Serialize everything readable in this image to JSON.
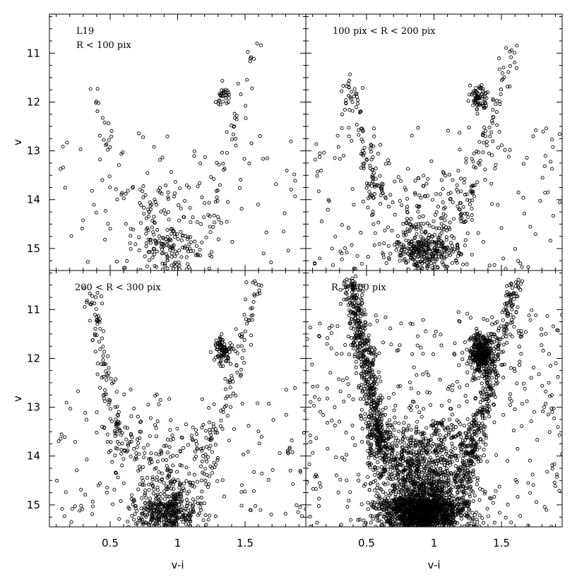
{
  "chart_data": {
    "type": "scatter",
    "layout": "2x2 shared axes",
    "xlabel": "v-i",
    "ylabel": "v",
    "xlim": [
      0.05,
      1.95
    ],
    "ylim": [
      15.45,
      10.2
    ],
    "y_inverted": true,
    "xticks": [
      0.5,
      1,
      1.5
    ],
    "xtick_labels": [
      "0.5",
      "1",
      "1.5"
    ],
    "yticks": [
      11,
      12,
      13,
      14,
      15
    ],
    "ytick_labels": [
      "11",
      "12",
      "13",
      "14",
      "15"
    ],
    "grid": false,
    "panels": [
      {
        "labels": [
          "L19",
          "R < 100 pix"
        ],
        "n_points": 420,
        "components": [
          {
            "name": "",
            "kind": "field",
            "xr": [
              0.1,
              1.9
            ],
            "yr": [
              12.6,
              15.5
            ],
            "frac": 0.22
          },
          {
            "name": "",
            "kind": "turnoff",
            "x": 0.93,
            "y": 14.7,
            "sx": 0.13,
            "sy": 0.45,
            "frac": 0.38
          },
          {
            "name": "",
            "kind": "subgiant",
            "xr": [
              0.55,
              1.25
            ],
            "y": 13.9,
            "sy": 0.3,
            "frac": 0.1
          },
          {
            "name": "",
            "kind": "red_clump",
            "x": 1.34,
            "y": 11.88,
            "sx": 0.025,
            "sy": 0.1,
            "frac": 0.07
          },
          {
            "name": "",
            "kind": "rgb",
            "x0": 1.22,
            "y0": 14.6,
            "x1": 1.6,
            "y1": 10.7,
            "frac": 0.1
          },
          {
            "name": "",
            "kind": "blue_seq",
            "x0": 0.33,
            "y0": 11.5,
            "x1": 0.6,
            "y1": 14.0,
            "frac": 0.05
          }
        ]
      },
      {
        "labels": [
          "100 pix < R < 200 pix"
        ],
        "n_points": 850,
        "components": [
          {
            "name": "",
            "kind": "field",
            "xr": [
              0.1,
              1.95
            ],
            "yr": [
              12.5,
              15.5
            ],
            "frac": 0.17
          },
          {
            "name": "",
            "kind": "turnoff",
            "x": 0.93,
            "y": 14.85,
            "sx": 0.14,
            "sy": 0.4,
            "frac": 0.45
          },
          {
            "name": "",
            "kind": "subgiant",
            "xr": [
              0.5,
              1.3
            ],
            "y": 13.9,
            "sy": 0.3,
            "frac": 0.1
          },
          {
            "name": "",
            "kind": "red_clump",
            "x": 1.33,
            "y": 11.9,
            "sx": 0.03,
            "sy": 0.12,
            "frac": 0.08
          },
          {
            "name": "",
            "kind": "rgb",
            "x0": 1.2,
            "y0": 14.6,
            "x1": 1.6,
            "y1": 10.8,
            "frac": 0.1
          },
          {
            "name": "",
            "kind": "blue_seq",
            "x0": 0.35,
            "y0": 11.5,
            "x1": 0.6,
            "y1": 14.0,
            "frac": 0.1
          }
        ]
      },
      {
        "labels": [
          "200 < R < 300 pix"
        ],
        "n_points": 1050,
        "components": [
          {
            "name": "",
            "kind": "field",
            "xr": [
              0.1,
              1.95
            ],
            "yr": [
              12.6,
              15.5
            ],
            "frac": 0.15
          },
          {
            "name": "",
            "kind": "turnoff",
            "x": 0.92,
            "y": 14.95,
            "sx": 0.12,
            "sy": 0.38,
            "frac": 0.48
          },
          {
            "name": "",
            "kind": "subgiant",
            "xr": [
              0.5,
              1.25
            ],
            "y": 13.85,
            "sy": 0.3,
            "frac": 0.1
          },
          {
            "name": "",
            "kind": "red_clump",
            "x": 1.33,
            "y": 11.85,
            "sx": 0.03,
            "sy": 0.12,
            "frac": 0.08
          },
          {
            "name": "",
            "kind": "rgb",
            "x0": 1.2,
            "y0": 14.6,
            "x1": 1.6,
            "y1": 10.3,
            "frac": 0.09
          },
          {
            "name": "",
            "kind": "blue_seq",
            "x0": 0.35,
            "y0": 10.6,
            "x1": 0.58,
            "y1": 13.9,
            "frac": 0.1
          }
        ]
      },
      {
        "labels": [
          "R > 300 pix"
        ],
        "n_points": 4200,
        "components": [
          {
            "name": "",
            "kind": "field",
            "xr": [
              0.05,
              1.95
            ],
            "yr": [
              11.0,
              15.5
            ],
            "frac": 0.1
          },
          {
            "name": "",
            "kind": "turnoff",
            "x": 0.92,
            "y": 14.9,
            "sx": 0.16,
            "sy": 0.45,
            "frac": 0.5
          },
          {
            "name": "",
            "kind": "subgiant",
            "xr": [
              0.5,
              1.3
            ],
            "y": 13.9,
            "sy": 0.35,
            "frac": 0.12
          },
          {
            "name": "",
            "kind": "red_clump",
            "x": 1.35,
            "y": 11.9,
            "sx": 0.04,
            "sy": 0.2,
            "frac": 0.08
          },
          {
            "name": "",
            "kind": "rgb",
            "x0": 1.22,
            "y0": 14.6,
            "x1": 1.6,
            "y1": 10.5,
            "frac": 0.08
          },
          {
            "name": "",
            "kind": "blue_seq",
            "x0": 0.38,
            "y0": 10.4,
            "x1": 0.62,
            "y1": 14.0,
            "frac": 0.12
          }
        ]
      }
    ]
  }
}
